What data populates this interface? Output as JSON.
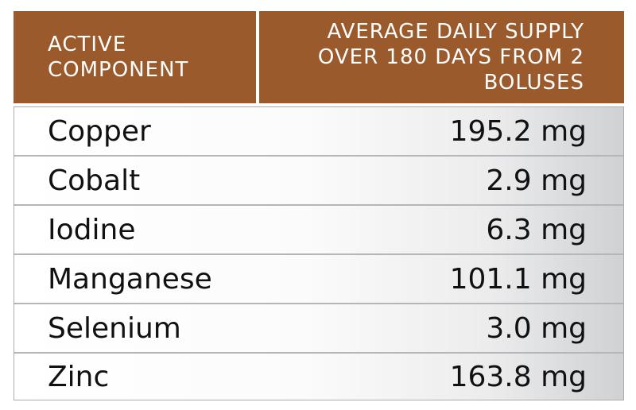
{
  "header": {
    "col1_line1": "ACTIVE",
    "col1_line2": "COMPONENT",
    "col2_line1": "AVERAGE DAILY SUPPLY",
    "col2_line2": "OVER 180 DAYS FROM 2",
    "col2_line3": "BOLUSES"
  },
  "rows": [
    {
      "component": "Copper",
      "value": "195.2 mg"
    },
    {
      "component": "Cobalt",
      "value": "2.9 mg"
    },
    {
      "component": "Iodine",
      "value": "6.3 mg"
    },
    {
      "component": "Manganese",
      "value": "101.1 mg"
    },
    {
      "component": "Selenium",
      "value": "3.0 mg"
    },
    {
      "component": "Zinc",
      "value": "163.8 mg"
    }
  ],
  "colors": {
    "header_background": "#9a5a2c",
    "header_text": "#ffffff",
    "row_border": "#b4b6b8"
  }
}
